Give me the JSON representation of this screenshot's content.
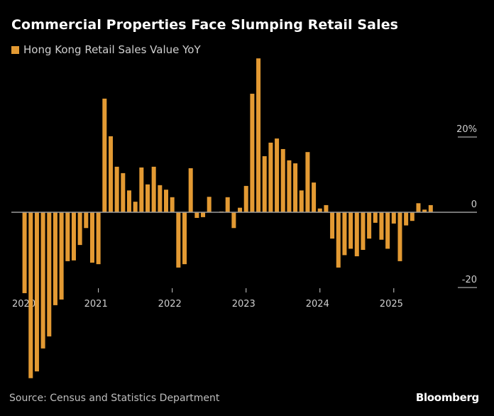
{
  "title": "Commercial Properties Face Slumping Retail Sales",
  "source": "Source: Census and Statistics Department",
  "brand": "Bloomberg",
  "colors": {
    "bar": "#E39A33",
    "background": "#000000",
    "axis": "#9a9a9a",
    "text": "#cfcfcf"
  },
  "chart_data": {
    "type": "bar",
    "title": "Commercial Properties Face Slumping Retail Sales",
    "xlabel": "",
    "ylabel": "",
    "legend": {
      "position": "top-left",
      "entries": [
        "Hong Kong Retail Sales Value YoY"
      ]
    },
    "y_unit": "%",
    "ylim": [
      -44.5,
      41.5
    ],
    "y_ticks": [
      {
        "value": 20,
        "label": "20%"
      },
      {
        "value": 0,
        "label": "0"
      },
      {
        "value": -20,
        "label": "-20"
      }
    ],
    "x_ticks": [
      {
        "month_index": 0,
        "label": "2020"
      },
      {
        "month_index": 12,
        "label": "2021"
      },
      {
        "month_index": 24,
        "label": "2022"
      },
      {
        "month_index": 36,
        "label": "2023"
      },
      {
        "month_index": 48,
        "label": "2024"
      },
      {
        "month_index": 60,
        "label": "2025"
      }
    ],
    "start": "2020-01",
    "frequency": "monthly",
    "series": [
      {
        "name": "Hong Kong Retail Sales Value YoY",
        "values": [
          -21.5,
          -44.1,
          -42.3,
          -36.2,
          -33.0,
          -24.7,
          -23.2,
          -13.0,
          -12.8,
          -8.7,
          -4.2,
          -13.4,
          -13.8,
          30.2,
          20.2,
          12.1,
          10.4,
          5.8,
          2.8,
          11.9,
          7.4,
          12.1,
          7.2,
          6.0,
          4.0,
          -14.7,
          -13.8,
          11.7,
          -1.5,
          -1.3,
          4.1,
          0.0,
          0.2,
          4.0,
          -4.2,
          1.2,
          7.0,
          31.5,
          40.9,
          14.9,
          18.5,
          19.6,
          16.8,
          13.8,
          13.0,
          5.8,
          16.0,
          7.9,
          1.0,
          1.9,
          -7.0,
          -14.7,
          -11.4,
          -9.7,
          -11.7,
          -10.0,
          -7.0,
          -2.8,
          -7.3,
          -9.7,
          -3.0,
          -13.0,
          -3.5,
          -2.3,
          2.4,
          0.7,
          1.9
        ]
      }
    ],
    "grid": false
  }
}
